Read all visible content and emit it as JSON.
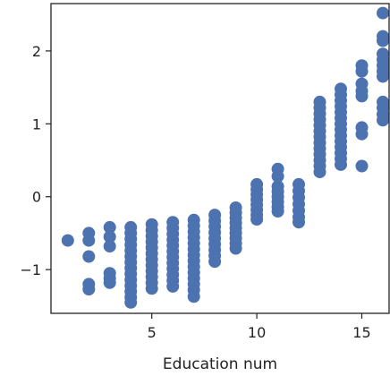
{
  "chart_data": {
    "type": "scatter",
    "xlabel": "Education num",
    "ylabel": "",
    "xlim": [
      0.2,
      16.3
    ],
    "ylim": [
      -1.6,
      2.65
    ],
    "x_ticks": [
      {
        "value": 5,
        "label": "5"
      },
      {
        "value": 10,
        "label": "10"
      },
      {
        "value": 15,
        "label": "15"
      }
    ],
    "y_ticks": [
      {
        "value": 2,
        "label": "2"
      },
      {
        "value": 1,
        "label": "1"
      },
      {
        "value": 0,
        "label": "0"
      },
      {
        "value": -1,
        "label": "−1"
      }
    ],
    "grid": false,
    "marker_color": "#4c72b0",
    "points": [
      [
        1,
        -0.6
      ],
      [
        2,
        -0.5
      ],
      [
        2,
        -0.6
      ],
      [
        2,
        -0.82
      ],
      [
        2,
        -1.2
      ],
      [
        2,
        -1.27
      ],
      [
        3,
        -0.42
      ],
      [
        3,
        -0.55
      ],
      [
        3,
        -0.68
      ],
      [
        3,
        -1.05
      ],
      [
        3,
        -1.12
      ],
      [
        3,
        -1.18
      ],
      [
        4,
        -0.42
      ],
      [
        4,
        -0.5
      ],
      [
        4,
        -0.58
      ],
      [
        4,
        -0.66
      ],
      [
        4,
        -0.74
      ],
      [
        4,
        -0.82
      ],
      [
        4,
        -0.9
      ],
      [
        4,
        -0.98
      ],
      [
        4,
        -1.06
      ],
      [
        4,
        -1.14
      ],
      [
        4,
        -1.22
      ],
      [
        4,
        -1.3
      ],
      [
        4,
        -1.38
      ],
      [
        4,
        -1.45
      ],
      [
        5,
        -0.38
      ],
      [
        5,
        -0.46
      ],
      [
        5,
        -0.54
      ],
      [
        5,
        -0.62
      ],
      [
        5,
        -0.7
      ],
      [
        5,
        -0.78
      ],
      [
        5,
        -0.86
      ],
      [
        5,
        -0.94
      ],
      [
        5,
        -1.02
      ],
      [
        5,
        -1.1
      ],
      [
        5,
        -1.18
      ],
      [
        5,
        -1.26
      ],
      [
        6,
        -0.35
      ],
      [
        6,
        -0.43
      ],
      [
        6,
        -0.51
      ],
      [
        6,
        -0.59
      ],
      [
        6,
        -0.67
      ],
      [
        6,
        -0.75
      ],
      [
        6,
        -0.83
      ],
      [
        6,
        -0.91
      ],
      [
        6,
        -0.99
      ],
      [
        6,
        -1.07
      ],
      [
        6,
        -1.15
      ],
      [
        6,
        -1.23
      ],
      [
        7,
        -0.32
      ],
      [
        7,
        -0.4
      ],
      [
        7,
        -0.48
      ],
      [
        7,
        -0.56
      ],
      [
        7,
        -0.64
      ],
      [
        7,
        -0.72
      ],
      [
        7,
        -0.8
      ],
      [
        7,
        -0.88
      ],
      [
        7,
        -0.96
      ],
      [
        7,
        -1.04
      ],
      [
        7,
        -1.12
      ],
      [
        7,
        -1.2
      ],
      [
        7,
        -1.28
      ],
      [
        7,
        -1.37
      ],
      [
        8,
        -0.25
      ],
      [
        8,
        -0.33
      ],
      [
        8,
        -0.41
      ],
      [
        8,
        -0.49
      ],
      [
        8,
        -0.57
      ],
      [
        8,
        -0.65
      ],
      [
        8,
        -0.73
      ],
      [
        8,
        -0.81
      ],
      [
        8,
        -0.89
      ],
      [
        9,
        -0.15
      ],
      [
        9,
        -0.22
      ],
      [
        9,
        -0.29
      ],
      [
        9,
        -0.36
      ],
      [
        9,
        -0.43
      ],
      [
        9,
        -0.5
      ],
      [
        9,
        -0.57
      ],
      [
        9,
        -0.64
      ],
      [
        9,
        -0.71
      ],
      [
        10,
        0.17
      ],
      [
        10,
        0.1
      ],
      [
        10,
        0.03
      ],
      [
        10,
        -0.04
      ],
      [
        10,
        -0.11
      ],
      [
        10,
        -0.18
      ],
      [
        10,
        -0.25
      ],
      [
        10,
        -0.31
      ],
      [
        11,
        0.38
      ],
      [
        11,
        0.28
      ],
      [
        11,
        0.14
      ],
      [
        11,
        0.07
      ],
      [
        11,
        0.0
      ],
      [
        11,
        -0.07
      ],
      [
        11,
        -0.14
      ],
      [
        11,
        -0.2
      ],
      [
        12,
        0.17
      ],
      [
        12,
        0.08
      ],
      [
        12,
        -0.01
      ],
      [
        12,
        -0.1
      ],
      [
        12,
        -0.19
      ],
      [
        12,
        -0.28
      ],
      [
        12,
        -0.35
      ],
      [
        13,
        1.3
      ],
      [
        13,
        1.22
      ],
      [
        13,
        1.14
      ],
      [
        13,
        1.06
      ],
      [
        13,
        0.98
      ],
      [
        13,
        0.9
      ],
      [
        13,
        0.82
      ],
      [
        13,
        0.74
      ],
      [
        13,
        0.66
      ],
      [
        13,
        0.58
      ],
      [
        13,
        0.5
      ],
      [
        13,
        0.42
      ],
      [
        13,
        0.34
      ],
      [
        14,
        1.48
      ],
      [
        14,
        1.4
      ],
      [
        14,
        1.32
      ],
      [
        14,
        1.24
      ],
      [
        14,
        1.16
      ],
      [
        14,
        1.08
      ],
      [
        14,
        1.0
      ],
      [
        14,
        0.92
      ],
      [
        14,
        0.84
      ],
      [
        14,
        0.76
      ],
      [
        14,
        0.68
      ],
      [
        14,
        0.6
      ],
      [
        14,
        0.52
      ],
      [
        14,
        0.44
      ],
      [
        15,
        1.8
      ],
      [
        15,
        1.72
      ],
      [
        15,
        1.55
      ],
      [
        15,
        1.45
      ],
      [
        15,
        1.38
      ],
      [
        15,
        0.95
      ],
      [
        15,
        0.86
      ],
      [
        15,
        0.42
      ],
      [
        16,
        2.52
      ],
      [
        16,
        2.2
      ],
      [
        16,
        2.14
      ],
      [
        16,
        1.96
      ],
      [
        16,
        1.88
      ],
      [
        16,
        1.8
      ],
      [
        16,
        1.72
      ],
      [
        16,
        1.65
      ],
      [
        16,
        1.3
      ],
      [
        16,
        1.22
      ],
      [
        16,
        1.13
      ],
      [
        16,
        1.05
      ]
    ]
  }
}
